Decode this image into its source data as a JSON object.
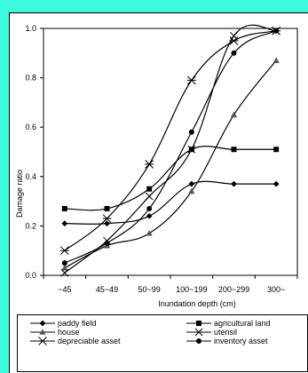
{
  "chart_data": {
    "type": "line",
    "xlabel": "Inundation depth (cm)",
    "ylabel": "Damage ratio",
    "categories": [
      "~45",
      "45~49",
      "50~99",
      "100~199",
      "200~299",
      "300~"
    ],
    "ylim": [
      0.0,
      1.0
    ],
    "yticks": [
      "0.0",
      "0.2",
      "0.4",
      "0.6",
      "0.8",
      "1.0"
    ],
    "grid": false,
    "legend_position": "bottom",
    "series": [
      {
        "name": "paddy field",
        "marker": "diamond",
        "values": [
          0.21,
          0.21,
          0.24,
          0.37,
          0.37,
          0.37
        ]
      },
      {
        "name": "agricultural land",
        "marker": "square",
        "values": [
          0.27,
          0.27,
          0.35,
          0.51,
          0.51,
          0.51
        ]
      },
      {
        "name": "house",
        "marker": "triangle",
        "values": [
          0.03,
          0.12,
          0.17,
          0.34,
          0.65,
          0.87
        ]
      },
      {
        "name": "utensil",
        "marker": "x",
        "values": [
          0.01,
          0.14,
          0.32,
          0.51,
          0.97,
          0.99
        ]
      },
      {
        "name": "depreciable asset",
        "marker": "star",
        "values": [
          0.1,
          0.23,
          0.45,
          0.79,
          0.95,
          0.99
        ]
      },
      {
        "name": "inventory asset",
        "marker": "circle",
        "values": [
          0.05,
          0.13,
          0.27,
          0.58,
          0.9,
          0.99
        ]
      }
    ]
  }
}
